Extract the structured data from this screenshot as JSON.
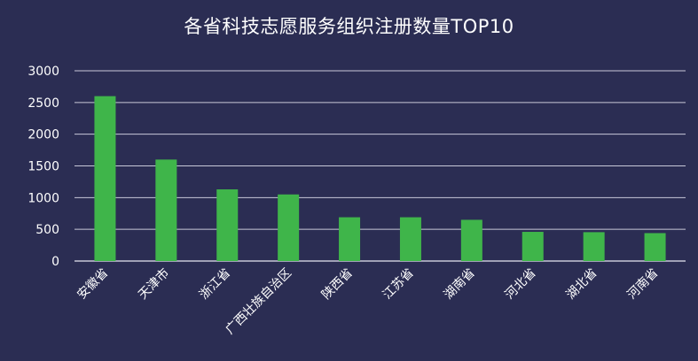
{
  "chart_data": {
    "type": "bar",
    "title": "各省科技志愿服务组织注册数量TOP10",
    "categories": [
      "安徽省",
      "天津市",
      "浙江省",
      "广西壮族自治区",
      "陕西省",
      "江苏省",
      "湖南省",
      "河北省",
      "湖北省",
      "河南省"
    ],
    "values": [
      2600,
      1600,
      1130,
      1050,
      690,
      690,
      650,
      460,
      455,
      440
    ],
    "ylim": [
      0,
      3000
    ],
    "yticks": [
      0,
      500,
      1000,
      1500,
      2000,
      2500,
      3000
    ],
    "grid": true,
    "bar_color": "#3fb54a",
    "background_color": "#2b2d53",
    "grid_color": "#c8c8d8"
  }
}
